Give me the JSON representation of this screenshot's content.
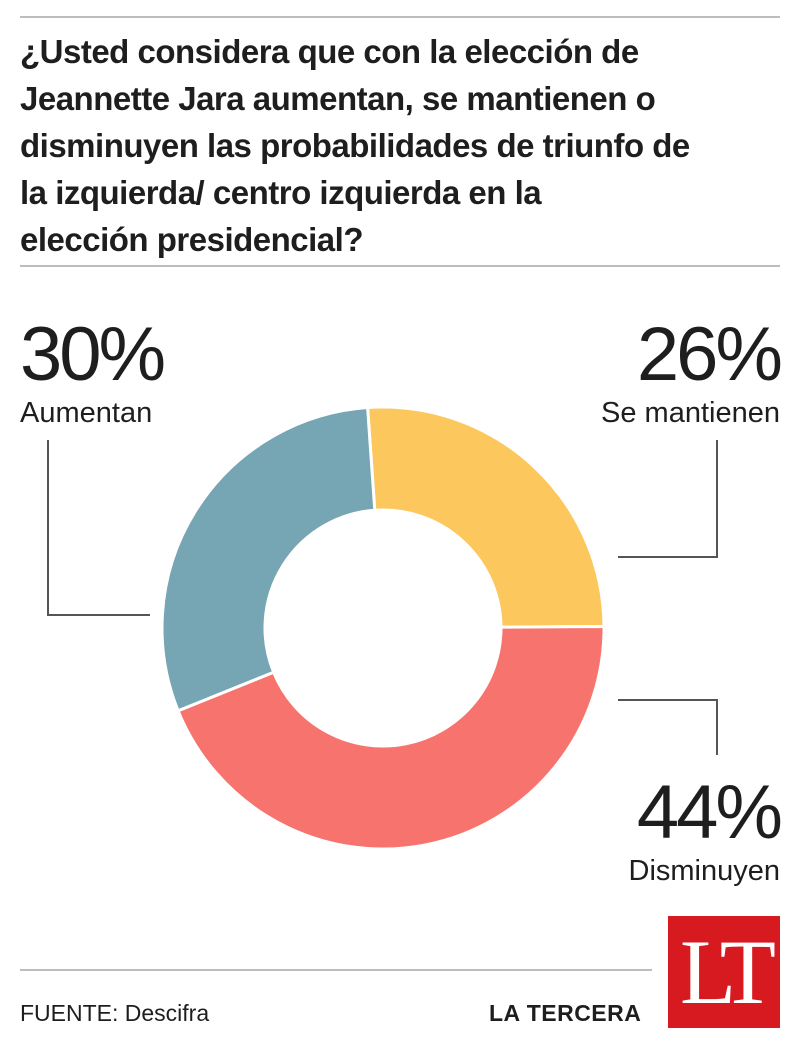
{
  "header": {
    "question": "¿Usted considera que con la elección de\nJeannette Jara aumentan, se mantienen o\ndisminuyen las probabilidades de triunfo de\nla izquierda/ centro  izquierda en la\nelección presidencial?"
  },
  "chart_data": {
    "type": "pie",
    "donut": true,
    "title": "¿Usted considera que con la elección de Jeannette Jara aumentan, se mantienen o disminuyen las probabilidades de triunfo de la izquierda/ centro  izquierda en la elección presidencial?",
    "slices": [
      {
        "label": "Se mantienen",
        "value": 26,
        "value_label": "26%",
        "color": "#fcc75c"
      },
      {
        "label": "Disminuyen",
        "value": 44,
        "value_label": "44%",
        "color": "#f6736e"
      },
      {
        "label": "Aumentan",
        "value": 30,
        "value_label": "30%",
        "color": "#76a5b3"
      }
    ]
  },
  "footer": {
    "source": "FUENTE: Descifra",
    "brand": "LA TERCERA",
    "logo_text": "LT",
    "logo_color": "#d71920"
  }
}
